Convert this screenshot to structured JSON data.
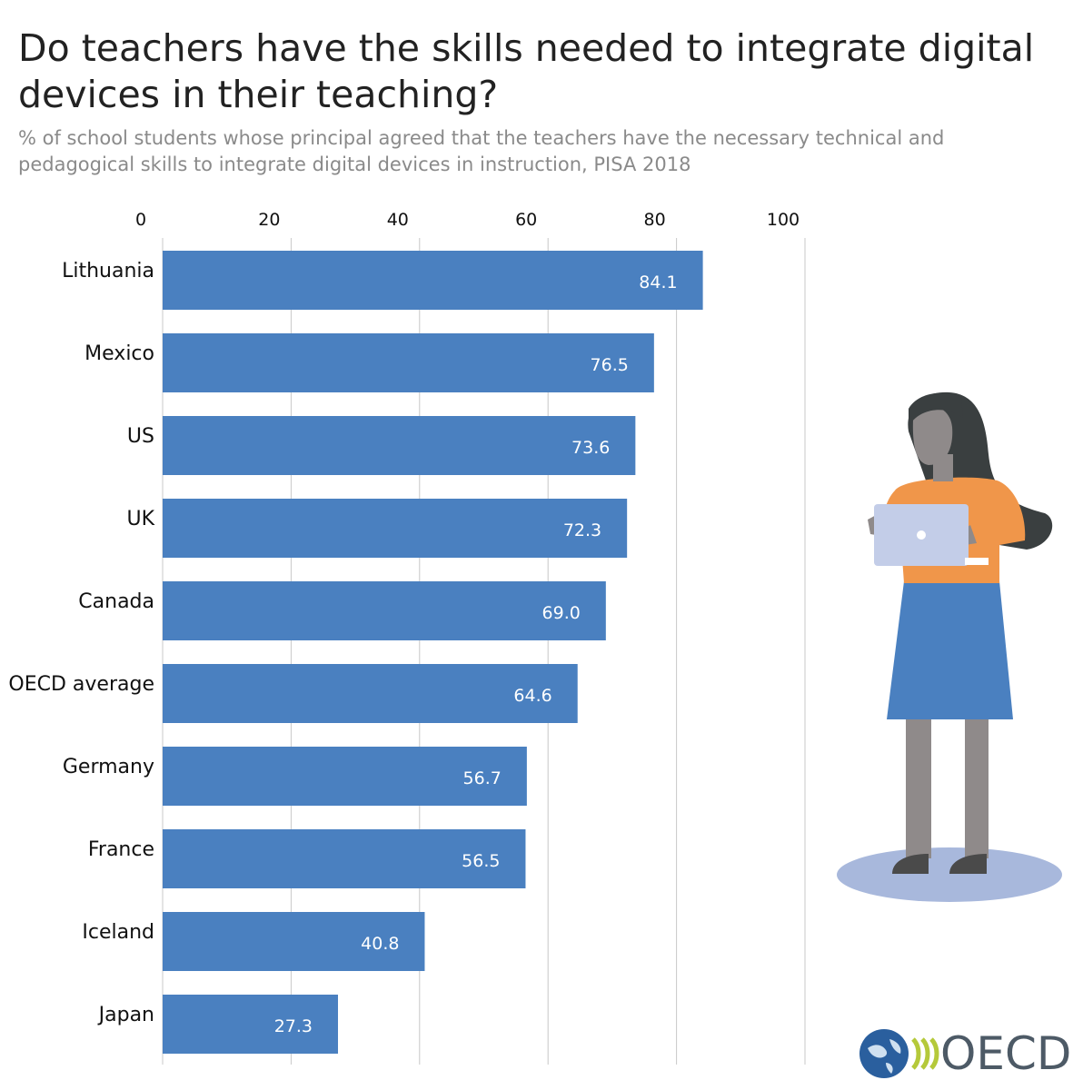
{
  "title": "Do teachers have the skills needed to integrate digital devices in their teaching?",
  "subtitle": "% of school students whose principal agreed that the teachers have the necessary technical and pedagogical skills to integrate digital devices in instruction, PISA 2018",
  "logo_text": "OECD",
  "colors": {
    "bar": "#4a80c0",
    "grid": "#c8c8c8",
    "label": "#111111",
    "value_label": "#ffffff"
  },
  "chart_data": {
    "type": "bar",
    "orientation": "horizontal",
    "categories": [
      "Lithuania",
      "Mexico",
      "US",
      "UK",
      "Canada",
      "OECD average",
      "Germany",
      "France",
      "Iceland",
      "Japan"
    ],
    "values": [
      84.1,
      76.5,
      73.6,
      72.3,
      69.0,
      64.6,
      56.7,
      56.5,
      40.8,
      27.3
    ],
    "value_labels": [
      "84.1",
      "76.5",
      "73.6",
      "72.3",
      "69.0",
      "64.6",
      "56.7",
      "56.5",
      "40.8",
      "27.3"
    ],
    "xlim": [
      0,
      100
    ],
    "xticks": [
      "0",
      "20",
      "40",
      "60",
      "80",
      "100"
    ],
    "xtick_values": [
      0,
      20,
      40,
      60,
      80,
      100
    ],
    "grid": true,
    "axis_position": "top"
  }
}
